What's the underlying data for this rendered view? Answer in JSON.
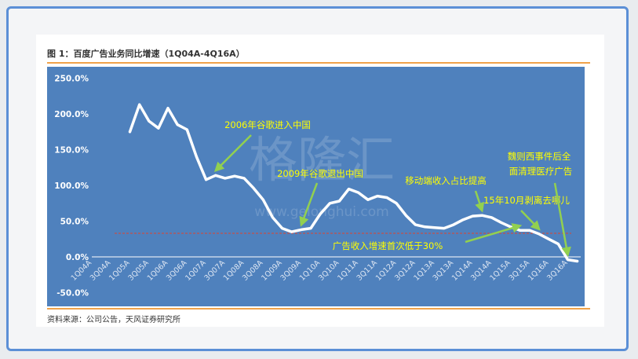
{
  "figure": {
    "title": "图 1：百度广告业务同比增速（1Q04A-4Q16A）",
    "source": "资料来源：公司公告，天风证券研究所",
    "watermark": "格隆汇",
    "watermark_url": "www.gelonghui.com"
  },
  "colors": {
    "plot_bg": "#4f81bd",
    "line": "#ffffff",
    "annotation_text": "#ffff00",
    "arrow": "#92d050",
    "threshold": "#c0504d",
    "rule": "#f0a24a"
  },
  "chart_data": {
    "type": "line",
    "grid": false,
    "legend": "none",
    "y_unit": "%",
    "ylim": [
      -50,
      250
    ],
    "yticks": [
      "-50.0%",
      "0.0%",
      "50.0%",
      "100.0%",
      "150.0%",
      "200.0%",
      "250.0%"
    ],
    "ytick_values": [
      -50,
      0,
      50,
      100,
      150,
      200,
      250
    ],
    "categories": [
      "1Q04A",
      "2Q04A",
      "3Q04A",
      "4Q04A",
      "1Q05A",
      "2Q05A",
      "3Q05A",
      "4Q05A",
      "1Q06A",
      "2Q06A",
      "3Q06A",
      "4Q06A",
      "1Q07A",
      "2Q07A",
      "3Q07A",
      "4Q07A",
      "1Q08A",
      "2Q08A",
      "3Q08A",
      "4Q08A",
      "1Q09A",
      "2Q09A",
      "3Q09A",
      "4Q09A",
      "1Q10A",
      "2Q10A",
      "3Q10A",
      "4Q10A",
      "1Q11A",
      "2Q11A",
      "3Q11A",
      "4Q11A",
      "1Q12A",
      "2Q12A",
      "3Q12A",
      "4Q12A",
      "1Q13A",
      "2Q13A",
      "3Q13A",
      "4Q13A",
      "1Q14A",
      "2Q14A",
      "3Q14A",
      "4Q14A",
      "1Q15A",
      "2Q15A",
      "3Q15A",
      "4Q15A",
      "1Q16A",
      "2Q16A",
      "3Q16A",
      "4Q16A"
    ],
    "xtick_labels": [
      "1Q04A",
      "3Q04A",
      "1Q05A",
      "3Q05A",
      "1Q06A",
      "3Q06A",
      "1Q07A",
      "3Q07A",
      "1Q08A",
      "3Q08A",
      "1Q09A",
      "3Q09A",
      "1Q10A",
      "3Q10A",
      "1Q11A",
      "3Q11A",
      "1Q12A",
      "3Q12A",
      "1Q13A",
      "3Q13A",
      "1Q14A",
      "3Q14A",
      "1Q15A",
      "3Q15A",
      "1Q16A",
      "3Q16A"
    ],
    "values": [
      null,
      null,
      null,
      null,
      175,
      213,
      190,
      180,
      208,
      185,
      178,
      140,
      108,
      114,
      110,
      113,
      110,
      96,
      80,
      55,
      40,
      35,
      38,
      40,
      60,
      75,
      78,
      95,
      90,
      80,
      85,
      83,
      75,
      58,
      45,
      42,
      41,
      40,
      45,
      52,
      57,
      58,
      55,
      48,
      42,
      37,
      37,
      32,
      25,
      18,
      -4,
      -6
    ],
    "threshold": 33,
    "annotations": [
      {
        "text": "2006年谷歌进入中国",
        "target": "2Q07A"
      },
      {
        "text": "2009年谷歌退出中国",
        "target": "3Q09A"
      },
      {
        "text": "移动端收入占比提高",
        "target": "2Q14A"
      },
      {
        "text": "广告收入增速首次低于30%",
        "target": "2Q15A"
      },
      {
        "text": "15年10月剥离去哪儿",
        "target": "4Q15A"
      },
      {
        "text": "魏则西事件后全",
        "target": "3Q16A"
      },
      {
        "text": "面清理医疗广告",
        "target": "3Q16A"
      }
    ]
  }
}
